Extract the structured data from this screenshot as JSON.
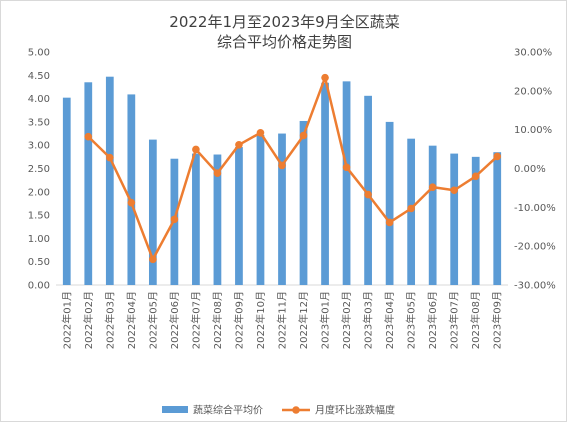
{
  "chart_data": {
    "type": "bar+line",
    "title_lines": [
      "2022年1月至2023年9月全区蔬菜",
      "综合平均价格走势图"
    ],
    "categories": [
      "2022年01月",
      "2022年02月",
      "2022年03月",
      "2022年04月",
      "2022年05月",
      "2022年06月",
      "2022年07月",
      "2022年08月",
      "2022年09月",
      "2022年10月",
      "2022年11月",
      "2022年12月",
      "2023年01月",
      "2023年02月",
      "2023年03月",
      "2023年04月",
      "2023年05月",
      "2023年06月",
      "2023年07月",
      "2023年08月",
      "2023年09月"
    ],
    "series": [
      {
        "name": "蔬菜综合平均价",
        "type": "bar",
        "axis": "left",
        "color": "#5B9BD5",
        "values": [
          4.02,
          4.35,
          4.47,
          4.09,
          3.12,
          2.71,
          2.82,
          2.8,
          2.96,
          3.22,
          3.25,
          3.52,
          4.34,
          4.37,
          4.06,
          3.5,
          3.14,
          2.99,
          2.82,
          2.75,
          2.85
        ]
      },
      {
        "name": "月度环比涨跌幅度",
        "type": "line",
        "axis": "right",
        "color": "#ED7D31",
        "values": [
          null,
          8.2,
          2.8,
          -8.8,
          -23.4,
          -13.1,
          4.9,
          -1.2,
          6.1,
          9.2,
          0.8,
          8.5,
          23.4,
          0.3,
          -6.7,
          -13.9,
          -10.3,
          -4.8,
          -5.6,
          -2.0,
          3.1
        ]
      }
    ],
    "y_left": {
      "min": 0,
      "max": 5,
      "step": 0.5,
      "ticks": [
        "0.00",
        "0.50",
        "1.00",
        "1.50",
        "2.00",
        "2.50",
        "3.00",
        "3.50",
        "4.00",
        "4.50",
        "5.00"
      ]
    },
    "y_right": {
      "min": -30,
      "max": 30,
      "step": 10,
      "ticks": [
        "-30.00%",
        "-20.00%",
        "-10.00%",
        "0.00%",
        "10.00%",
        "20.00%",
        "30.00%"
      ]
    },
    "legend": {
      "position": "bottom",
      "items": [
        "蔬菜综合平均价",
        "月度环比涨跌幅度"
      ]
    },
    "grid": false
  }
}
